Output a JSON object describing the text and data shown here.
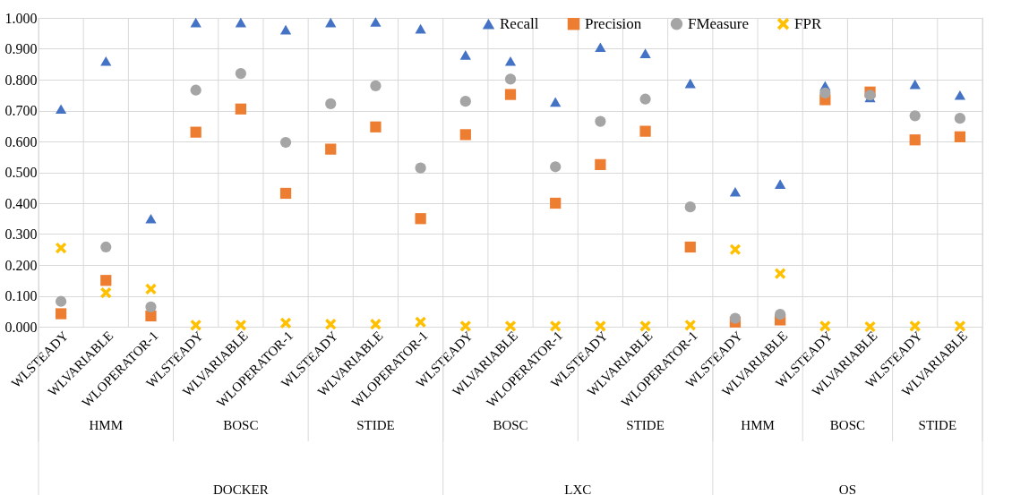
{
  "chart_data": {
    "type": "scatter",
    "categories": [
      "WLSTEADY",
      "WLVARIABLE",
      "WLOPERATOR-1",
      "WLSTEADY",
      "WLVARIABLE",
      "WLOPERATOR-1",
      "WLSTEADY",
      "WLVARIABLE",
      "WLOPERATOR-1",
      "WLSTEADY",
      "WLVARIABLE",
      "WLOPERATOR-1",
      "WLSTEADY",
      "WLVARIABLE",
      "WLOPERATOR-1",
      "WLSTEADY",
      "WLVARIABLE",
      "WLSTEADY",
      "WLVARIABLE",
      "WLSTEADY",
      "WLVARIABLE"
    ],
    "series": [
      {
        "name": "Recall",
        "color": "#4472c4",
        "marker": "triangle",
        "values": [
          0.705,
          0.86,
          0.35,
          0.985,
          0.985,
          0.962,
          0.985,
          0.987,
          0.965,
          0.88,
          0.86,
          0.728,
          0.905,
          0.885,
          0.788,
          0.437,
          0.462,
          0.78,
          0.742,
          0.785,
          0.75
        ]
      },
      {
        "name": "Precision",
        "color": "#ed7d31",
        "marker": "square",
        "values": [
          0.042,
          0.15,
          0.035,
          0.63,
          0.705,
          0.432,
          0.575,
          0.647,
          0.35,
          0.622,
          0.752,
          0.4,
          0.525,
          0.633,
          0.258,
          0.015,
          0.022,
          0.735,
          0.76,
          0.605,
          0.615
        ]
      },
      {
        "name": "FMeasure",
        "color": "#a5a5a5",
        "marker": "circle",
        "values": [
          0.082,
          0.258,
          0.064,
          0.766,
          0.82,
          0.597,
          0.722,
          0.78,
          0.514,
          0.73,
          0.802,
          0.518,
          0.665,
          0.737,
          0.388,
          0.027,
          0.04,
          0.757,
          0.75,
          0.683,
          0.675
        ]
      },
      {
        "name": "FPR",
        "color": "#ffc000",
        "marker": "cross",
        "values": [
          0.255,
          0.11,
          0.122,
          0.005,
          0.005,
          0.012,
          0.008,
          0.008,
          0.015,
          0.002,
          0.002,
          0.002,
          0.002,
          0.002,
          0.005,
          0.25,
          0.172,
          0.002,
          0.0,
          0.002,
          0.002
        ]
      }
    ],
    "ylim": [
      0,
      1
    ],
    "yticks": [
      {
        "value": 0,
        "label": "0.000"
      },
      {
        "value": 0.1,
        "label": "0.100"
      },
      {
        "value": 0.2,
        "label": "0.200"
      },
      {
        "value": 0.3,
        "label": "0.300"
      },
      {
        "value": 0.4,
        "label": "0.400"
      },
      {
        "value": 0.5,
        "label": "0.500"
      },
      {
        "value": 0.6,
        "label": "0.600"
      },
      {
        "value": 0.7,
        "label": "0.700"
      },
      {
        "value": 0.8,
        "label": "0.800"
      },
      {
        "value": 0.9,
        "label": "0.900"
      },
      {
        "value": 1,
        "label": "1.000"
      }
    ],
    "grid": true,
    "legend": "top right",
    "annotations": [
      "HMM",
      "BOSC",
      "STIDE",
      "BOSC",
      "STIDE",
      "HMM",
      "BOSC",
      "STIDE",
      "DOCKER",
      "LXC",
      "OS"
    ]
  }
}
